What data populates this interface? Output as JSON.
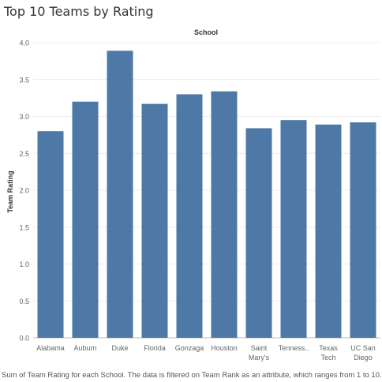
{
  "chart_data": {
    "type": "bar",
    "title": "Top 10 Teams by Rating",
    "column_header": "School",
    "ylabel": "Team Rating",
    "ylim": [
      0,
      4.0
    ],
    "yticks": [
      "0.0",
      "0.5",
      "1.0",
      "1.5",
      "2.0",
      "2.5",
      "3.0",
      "3.5",
      "4.0"
    ],
    "categories": [
      [
        "Alabama"
      ],
      [
        "Auburn"
      ],
      [
        "Duke"
      ],
      [
        "Florida"
      ],
      [
        "Gonzaga"
      ],
      [
        "Houston"
      ],
      [
        "Saint",
        "Mary's"
      ],
      [
        "Tenness.."
      ],
      [
        "Texas",
        "Tech"
      ],
      [
        "UC San",
        "Diego"
      ]
    ],
    "values": [
      2.8,
      3.2,
      3.89,
      3.17,
      3.3,
      3.34,
      2.84,
      2.95,
      2.89,
      2.92
    ],
    "bar_color": "#4e79a7",
    "grid": true
  },
  "caption": "Sum of Team Rating for each School.  The data is filtered on Team Rank as an attribute, which ranges from 1 to 10."
}
